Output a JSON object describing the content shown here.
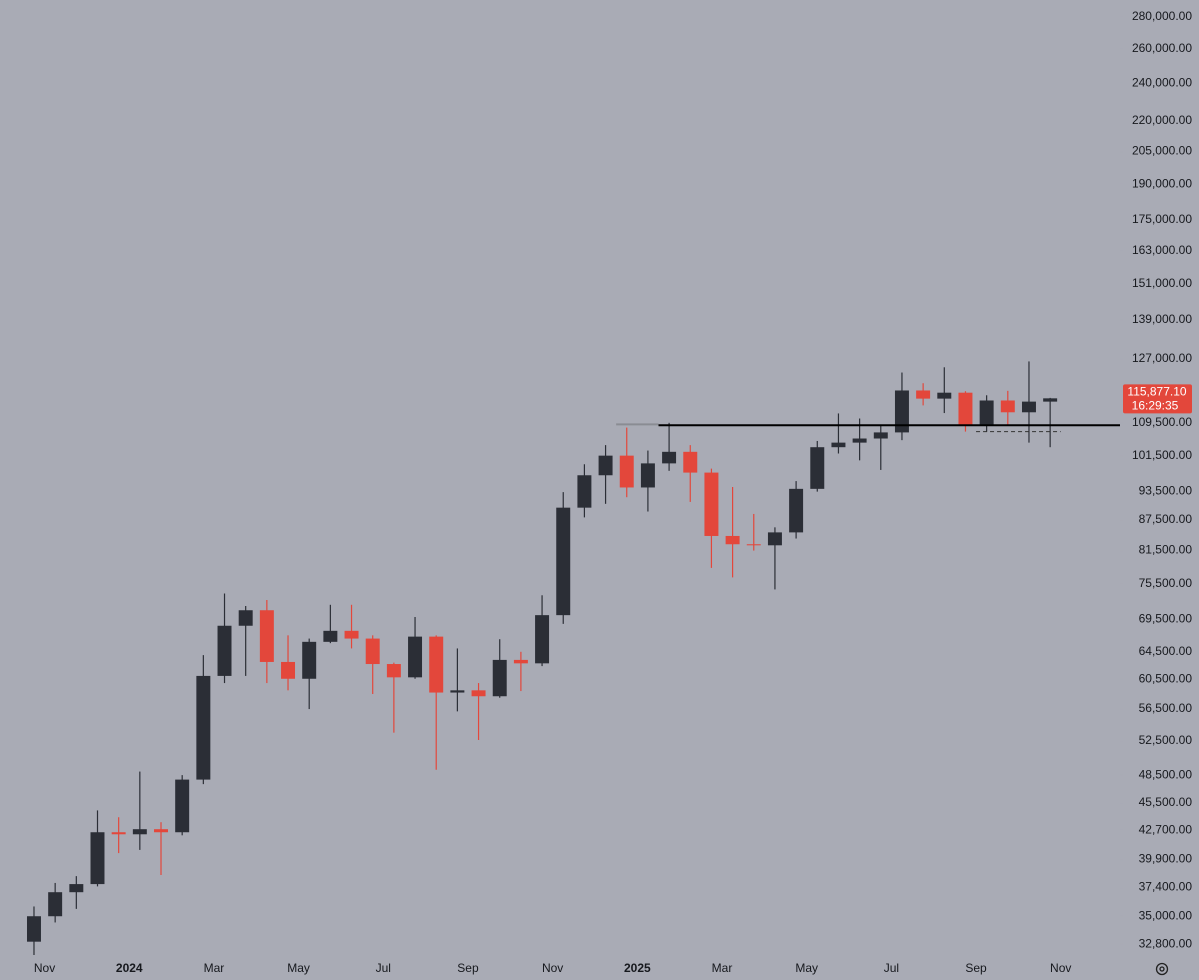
{
  "chart_data": {
    "type": "candlestick",
    "log_scale": true,
    "categories": [
      null,
      "Nov",
      null,
      null,
      null,
      "2024",
      null,
      null,
      null,
      "Mar",
      null,
      null,
      null,
      "May",
      null,
      null,
      null,
      "Jul",
      null,
      null,
      null,
      "Sep",
      null,
      null,
      null,
      "Nov",
      null,
      null,
      null,
      "2025",
      null,
      null,
      null,
      "Mar",
      null,
      null,
      null,
      "May",
      null,
      null,
      null,
      "Jul",
      null,
      null,
      null,
      "Sep",
      null,
      null,
      null,
      "Nov"
    ],
    "open": [
      33000,
      35000,
      37000,
      37700,
      42500,
      42300,
      42800,
      42500,
      48000,
      61000,
      68500,
      71000,
      63000,
      60600,
      66000,
      67700,
      66500,
      62700,
      60800,
      66800,
      58700,
      59000,
      58200,
      63300,
      62800,
      70200,
      90000,
      97000,
      101500,
      94300,
      99700,
      102400,
      97600,
      84300,
      82700,
      82500,
      85000,
      94000,
      103500,
      104600,
      105600,
      107100,
      118000,
      115800,
      117400,
      109000,
      115300,
      112200,
      115000,
      null
    ],
    "high": [
      35800,
      37800,
      38400,
      44700,
      44000,
      48900,
      43500,
      48500,
      64000,
      73800,
      71700,
      72700,
      67000,
      66500,
      71900,
      71900,
      67000,
      62900,
      69900,
      67000,
      65000,
      60000,
      66400,
      64500,
      73500,
      93300,
      99500,
      104000,
      108300,
      102700,
      109500,
      104000,
      98500,
      94400,
      88700,
      86000,
      95700,
      105000,
      111900,
      110600,
      108800,
      123000,
      120000,
      124500,
      117800,
      116700,
      117900,
      126200,
      116000,
      null
    ],
    "low": [
      32000,
      34500,
      35600,
      37500,
      40500,
      40800,
      38500,
      42200,
      47500,
      60000,
      61000,
      60000,
      59000,
      56500,
      65800,
      65000,
      58500,
      53500,
      60600,
      49100,
      56200,
      52600,
      58000,
      58900,
      62400,
      68800,
      88000,
      90800,
      92200,
      89200,
      98000,
      91200,
      78300,
      76600,
      81500,
      74500,
      83800,
      93400,
      102000,
      100400,
      98200,
      105200,
      114000,
      112000,
      107300,
      107300,
      108700,
      104600,
      103500,
      null
    ],
    "close": [
      35000,
      37000,
      37700,
      42500,
      42300,
      42800,
      42500,
      48000,
      61000,
      68500,
      71000,
      63000,
      60600,
      66000,
      67700,
      66500,
      62700,
      60800,
      66800,
      58700,
      59000,
      58200,
      63300,
      62800,
      70200,
      90000,
      97000,
      101500,
      94300,
      99700,
      102400,
      97600,
      84300,
      82700,
      82500,
      85000,
      94000,
      103500,
      104600,
      105600,
      107100,
      118000,
      115800,
      117400,
      109000,
      115300,
      112200,
      115000,
      115877.1,
      null
    ],
    "up_color": "#2b2e36",
    "down_color": "#e3473b",
    "ylim": [
      32000,
      291000
    ],
    "yticks": [
      {
        "value": 280000,
        "label": "280,000.00"
      },
      {
        "value": 260000,
        "label": "260,000.00"
      },
      {
        "value": 240000,
        "label": "240,000.00"
      },
      {
        "value": 220000,
        "label": "220,000.00"
      },
      {
        "value": 205000,
        "label": "205,000.00"
      },
      {
        "value": 190000,
        "label": "190,000.00"
      },
      {
        "value": 175000,
        "label": "175,000.00"
      },
      {
        "value": 163000,
        "label": "163,000.00"
      },
      {
        "value": 151000,
        "label": "151,000.00"
      },
      {
        "value": 139000,
        "label": "139,000.00"
      },
      {
        "value": 127000,
        "label": "127,000.00"
      },
      {
        "value": 109500,
        "label": "109,500.00"
      },
      {
        "value": 101500,
        "label": "101,500.00"
      },
      {
        "value": 93500,
        "label": "93,500.00"
      },
      {
        "value": 87500,
        "label": "87,500.00"
      },
      {
        "value": 81500,
        "label": "81,500.00"
      },
      {
        "value": 75500,
        "label": "75,500.00"
      },
      {
        "value": 69500,
        "label": "69,500.00"
      },
      {
        "value": 64500,
        "label": "64,500.00"
      },
      {
        "value": 60500,
        "label": "60,500.00"
      },
      {
        "value": 56500,
        "label": "56,500.00"
      },
      {
        "value": 52500,
        "label": "52,500.00"
      },
      {
        "value": 48500,
        "label": "48,500.00"
      },
      {
        "value": 45500,
        "label": "45,500.00"
      },
      {
        "value": 42700,
        "label": "42,700.00"
      },
      {
        "value": 39900,
        "label": "39,900.00"
      },
      {
        "value": 37400,
        "label": "37,400.00"
      },
      {
        "value": 35000,
        "label": "35,000.00"
      },
      {
        "value": 32800,
        "label": "32,800.00"
      }
    ],
    "last_price": {
      "value": 115877.1,
      "label": "115,877.10",
      "countdown": "16:29:35",
      "color": "#e3473b"
    },
    "levels": [
      {
        "value": 108900,
        "from_index": 30,
        "style": "solid",
        "color": "#000000"
      },
      {
        "value": 109100,
        "from_index": 28,
        "to_index": 30,
        "style": "solid",
        "color": "#8a8c93"
      },
      {
        "value": 107300,
        "from_index": 45,
        "to_index": 49,
        "style": "dashed",
        "color": "#333333"
      }
    ]
  }
}
